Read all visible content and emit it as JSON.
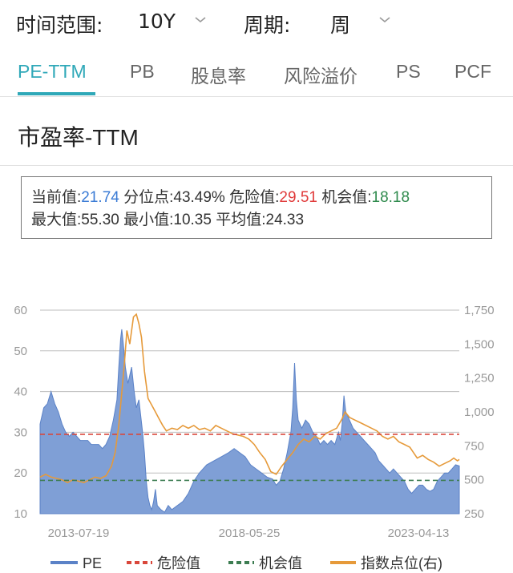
{
  "filters": {
    "range_label": "时间范围:",
    "range_value": "10Y",
    "period_label": "周期:",
    "period_value": "周"
  },
  "tabs": [
    {
      "label": "PE-TTM",
      "active": true
    },
    {
      "label": "PB",
      "active": false
    },
    {
      "label": "股息率",
      "active": false
    },
    {
      "label": "风险溢价",
      "active": false
    },
    {
      "label": "PS",
      "active": false
    },
    {
      "label": "PCF",
      "active": false
    }
  ],
  "section_title": "市盈率-TTM",
  "stats": {
    "current_label": "当前值:",
    "current_value": "21.74",
    "percentile_label": "分位点:",
    "percentile_value": "43.49%",
    "danger_label": "危险值:",
    "danger_value": "29.51",
    "chance_label": "机会值:",
    "chance_value": "18.18",
    "max_label": "最大值:",
    "max_value": "55.30",
    "min_label": "最小值:",
    "min_value": "10.35",
    "avg_label": "平均值:",
    "avg_value": "24.33"
  },
  "colors": {
    "accent": "#2fa8b8",
    "pe_fill": "#7f9fd6",
    "pe_line": "#5b82c7",
    "danger": "#d9473b",
    "chance": "#3d7d52",
    "index": "#e69a3a"
  },
  "chart_data": {
    "type": "area",
    "x_tick_labels": [
      "2013-07-19",
      "2018-05-25",
      "2023-04-13"
    ],
    "left_axis": {
      "ticks": [
        "10",
        "20",
        "30",
        "40",
        "50",
        "60"
      ],
      "range": [
        10,
        60
      ]
    },
    "right_axis": {
      "ticks": [
        "250",
        "500",
        "750",
        "1,000",
        "1,250",
        "1,500",
        "1,750"
      ],
      "range": [
        250,
        1750
      ]
    },
    "reference_lines": [
      {
        "name": "危险值",
        "value": 29.51
      },
      {
        "name": "机会值",
        "value": 18.18
      }
    ],
    "legend": [
      "PE",
      "危险值",
      "机会值",
      "指数点位(右)"
    ],
    "legend_position": "bottom",
    "x_range": [
      2012.75,
      2024.2
    ],
    "series": [
      {
        "name": "PE",
        "axis": "left",
        "type": "area",
        "points": [
          [
            2012.75,
            32
          ],
          [
            2012.85,
            36
          ],
          [
            2012.95,
            37
          ],
          [
            2013.05,
            40
          ],
          [
            2013.15,
            37
          ],
          [
            2013.25,
            35
          ],
          [
            2013.35,
            32
          ],
          [
            2013.45,
            30
          ],
          [
            2013.55,
            29
          ],
          [
            2013.65,
            30
          ],
          [
            2013.75,
            29
          ],
          [
            2013.85,
            28
          ],
          [
            2013.95,
            28
          ],
          [
            2014.05,
            28
          ],
          [
            2014.15,
            27
          ],
          [
            2014.25,
            27
          ],
          [
            2014.35,
            27
          ],
          [
            2014.45,
            26
          ],
          [
            2014.55,
            27
          ],
          [
            2014.65,
            29
          ],
          [
            2014.75,
            33
          ],
          [
            2014.85,
            38
          ],
          [
            2014.9,
            46
          ],
          [
            2014.95,
            53
          ],
          [
            2014.98,
            55.3
          ],
          [
            2015.02,
            52
          ],
          [
            2015.08,
            46
          ],
          [
            2015.15,
            42
          ],
          [
            2015.25,
            46
          ],
          [
            2015.32,
            40
          ],
          [
            2015.38,
            36
          ],
          [
            2015.45,
            38
          ],
          [
            2015.5,
            34
          ],
          [
            2015.55,
            30
          ],
          [
            2015.6,
            25
          ],
          [
            2015.65,
            18
          ],
          [
            2015.7,
            14
          ],
          [
            2015.75,
            12
          ],
          [
            2015.8,
            11
          ],
          [
            2015.85,
            13
          ],
          [
            2015.9,
            16
          ],
          [
            2015.95,
            12
          ],
          [
            2016.05,
            11
          ],
          [
            2016.15,
            10.35
          ],
          [
            2016.25,
            12
          ],
          [
            2016.35,
            11
          ],
          [
            2016.5,
            12
          ],
          [
            2016.65,
            13
          ],
          [
            2016.8,
            15
          ],
          [
            2016.95,
            18
          ],
          [
            2017.1,
            20
          ],
          [
            2017.3,
            22
          ],
          [
            2017.5,
            23
          ],
          [
            2017.7,
            24
          ],
          [
            2017.9,
            25
          ],
          [
            2018.05,
            26
          ],
          [
            2018.2,
            25
          ],
          [
            2018.35,
            24
          ],
          [
            2018.5,
            22
          ],
          [
            2018.65,
            21
          ],
          [
            2018.8,
            20
          ],
          [
            2018.95,
            19
          ],
          [
            2019.1,
            18.5
          ],
          [
            2019.2,
            17
          ],
          [
            2019.3,
            18
          ],
          [
            2019.4,
            21
          ],
          [
            2019.5,
            25
          ],
          [
            2019.6,
            30
          ],
          [
            2019.65,
            36
          ],
          [
            2019.7,
            47
          ],
          [
            2019.75,
            38
          ],
          [
            2019.8,
            33
          ],
          [
            2019.9,
            31
          ],
          [
            2020.0,
            33
          ],
          [
            2020.1,
            32
          ],
          [
            2020.2,
            30
          ],
          [
            2020.3,
            29
          ],
          [
            2020.4,
            27
          ],
          [
            2020.5,
            28
          ],
          [
            2020.6,
            27
          ],
          [
            2020.7,
            28
          ],
          [
            2020.8,
            27
          ],
          [
            2020.9,
            30
          ],
          [
            2020.95,
            28
          ],
          [
            2021.0,
            32
          ],
          [
            2021.05,
            39
          ],
          [
            2021.1,
            35
          ],
          [
            2021.2,
            33
          ],
          [
            2021.3,
            31
          ],
          [
            2021.4,
            30
          ],
          [
            2021.5,
            29
          ],
          [
            2021.6,
            28
          ],
          [
            2021.7,
            27
          ],
          [
            2021.8,
            26
          ],
          [
            2021.9,
            25
          ],
          [
            2022.0,
            23
          ],
          [
            2022.1,
            22
          ],
          [
            2022.2,
            21
          ],
          [
            2022.3,
            20
          ],
          [
            2022.4,
            21
          ],
          [
            2022.5,
            20
          ],
          [
            2022.6,
            19
          ],
          [
            2022.7,
            18
          ],
          [
            2022.8,
            16
          ],
          [
            2022.9,
            15
          ],
          [
            2023.0,
            16
          ],
          [
            2023.1,
            17
          ],
          [
            2023.2,
            17
          ],
          [
            2023.3,
            16
          ],
          [
            2023.4,
            15.5
          ],
          [
            2023.5,
            16
          ],
          [
            2023.6,
            18
          ],
          [
            2023.7,
            19
          ],
          [
            2023.8,
            20
          ],
          [
            2023.9,
            20
          ],
          [
            2024.0,
            21
          ],
          [
            2024.1,
            22
          ],
          [
            2024.2,
            21.74
          ]
        ]
      },
      {
        "name": "指数点位(右)",
        "axis": "right",
        "type": "line",
        "points": [
          [
            2012.75,
            520
          ],
          [
            2012.9,
            540
          ],
          [
            2013.05,
            520
          ],
          [
            2013.2,
            510
          ],
          [
            2013.35,
            500
          ],
          [
            2013.5,
            480
          ],
          [
            2013.65,
            500
          ],
          [
            2013.8,
            490
          ],
          [
            2013.95,
            480
          ],
          [
            2014.1,
            500
          ],
          [
            2014.25,
            520
          ],
          [
            2014.4,
            510
          ],
          [
            2014.55,
            530
          ],
          [
            2014.7,
            600
          ],
          [
            2014.8,
            700
          ],
          [
            2014.9,
            900
          ],
          [
            2015.0,
            1200
          ],
          [
            2015.05,
            1350
          ],
          [
            2015.12,
            1600
          ],
          [
            2015.2,
            1500
          ],
          [
            2015.3,
            1700
          ],
          [
            2015.38,
            1720
          ],
          [
            2015.45,
            1650
          ],
          [
            2015.52,
            1550
          ],
          [
            2015.6,
            1300
          ],
          [
            2015.7,
            1100
          ],
          [
            2015.8,
            1050
          ],
          [
            2015.9,
            1000
          ],
          [
            2016.0,
            950
          ],
          [
            2016.1,
            900
          ],
          [
            2016.2,
            860
          ],
          [
            2016.35,
            880
          ],
          [
            2016.5,
            870
          ],
          [
            2016.65,
            900
          ],
          [
            2016.8,
            880
          ],
          [
            2016.95,
            900
          ],
          [
            2017.1,
            870
          ],
          [
            2017.25,
            880
          ],
          [
            2017.4,
            860
          ],
          [
            2017.55,
            900
          ],
          [
            2017.7,
            880
          ],
          [
            2017.85,
            860
          ],
          [
            2018.0,
            840
          ],
          [
            2018.15,
            830
          ],
          [
            2018.3,
            820
          ],
          [
            2018.45,
            800
          ],
          [
            2018.6,
            760
          ],
          [
            2018.75,
            700
          ],
          [
            2018.9,
            650
          ],
          [
            2019.05,
            560
          ],
          [
            2019.2,
            540
          ],
          [
            2019.35,
            600
          ],
          [
            2019.5,
            650
          ],
          [
            2019.65,
            700
          ],
          [
            2019.8,
            760
          ],
          [
            2019.95,
            800
          ],
          [
            2020.1,
            780
          ],
          [
            2020.25,
            820
          ],
          [
            2020.4,
            800
          ],
          [
            2020.55,
            840
          ],
          [
            2020.7,
            860
          ],
          [
            2020.85,
            880
          ],
          [
            2021.0,
            950
          ],
          [
            2021.08,
            1000
          ],
          [
            2021.2,
            960
          ],
          [
            2021.35,
            940
          ],
          [
            2021.5,
            920
          ],
          [
            2021.65,
            900
          ],
          [
            2021.8,
            880
          ],
          [
            2021.95,
            860
          ],
          [
            2022.1,
            820
          ],
          [
            2022.25,
            800
          ],
          [
            2022.4,
            820
          ],
          [
            2022.55,
            780
          ],
          [
            2022.7,
            760
          ],
          [
            2022.85,
            740
          ],
          [
            2022.95,
            700
          ],
          [
            2023.05,
            660
          ],
          [
            2023.2,
            680
          ],
          [
            2023.35,
            650
          ],
          [
            2023.5,
            630
          ],
          [
            2023.65,
            600
          ],
          [
            2023.8,
            620
          ],
          [
            2023.95,
            640
          ],
          [
            2024.05,
            660
          ],
          [
            2024.15,
            640
          ],
          [
            2024.2,
            650
          ]
        ]
      }
    ]
  }
}
